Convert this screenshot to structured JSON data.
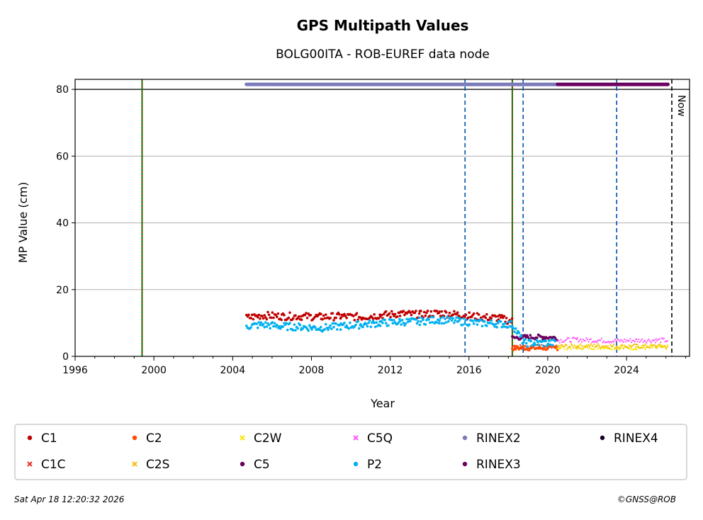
{
  "chart_data": {
    "type": "scatter",
    "title": "GPS Multipath Values",
    "subtitle": "BOLG00ITA - ROB-EUREF data node",
    "xlabel": "Year",
    "ylabel": "MP Value (cm)",
    "xlim": [
      1996,
      2027.2
    ],
    "ylim": [
      0,
      83
    ],
    "grid": "horizontal",
    "x_ticks": [
      "1996",
      "2000",
      "2004",
      "2008",
      "2012",
      "2016",
      "2020",
      "2024"
    ],
    "x_tick_values": [
      1996,
      2000,
      2004,
      2008,
      2012,
      2016,
      2020,
      2024
    ],
    "y_ticks": [
      "0",
      "20",
      "40",
      "60",
      "80"
    ],
    "y_tick_values": [
      0,
      20,
      40,
      60,
      80
    ],
    "now_label": "Now",
    "now_year": 2026.3,
    "vlines_green_red": [
      1999.4,
      2018.2
    ],
    "vlines_blue_dashed": [
      2015.8,
      2018.75,
      2023.5
    ],
    "rinex_bars": [
      {
        "name": "RINEX2",
        "color": "#7b7bbb",
        "y": 81.5,
        "start": 2004.7,
        "end": 2020.5
      },
      {
        "name": "RINEX3",
        "color": "#6a005f",
        "y": 81.5,
        "start": 2020.5,
        "end": 2026.1
      }
    ],
    "series": [
      {
        "name": "C1",
        "color": "#bf0000",
        "marker": "dot",
        "points": [
          [
            2004.7,
            11.5
          ],
          [
            2005.5,
            12.3
          ],
          [
            2006.5,
            12.0
          ],
          [
            2007.5,
            12.0
          ],
          [
            2008.5,
            11.8
          ],
          [
            2009.5,
            12.0
          ],
          [
            2010.5,
            11.8
          ],
          [
            2011.5,
            12.3
          ],
          [
            2012.5,
            12.8
          ],
          [
            2013.5,
            12.5
          ],
          [
            2014.5,
            13.0
          ],
          [
            2015.5,
            12.5
          ],
          [
            2016.5,
            11.8
          ],
          [
            2017.5,
            11.5
          ],
          [
            2018.2,
            10.5
          ]
        ]
      },
      {
        "name": "C1C",
        "color": "#e83020",
        "marker": "x",
        "points": [
          [
            2018.2,
            3.0
          ],
          [
            2019.0,
            2.8
          ],
          [
            2019.8,
            2.8
          ],
          [
            2020.5,
            2.9
          ]
        ]
      },
      {
        "name": "C2",
        "color": "#ff4a00",
        "marker": "dot",
        "points": [
          [
            2018.2,
            2.5
          ],
          [
            2019.0,
            2.5
          ],
          [
            2019.8,
            2.5
          ],
          [
            2020.5,
            2.6
          ]
        ]
      },
      {
        "name": "C2S",
        "color": "#f0c000",
        "marker": "x",
        "points": [
          [
            2020.5,
            3.0
          ],
          [
            2021.5,
            3.0
          ],
          [
            2022.5,
            3.2
          ],
          [
            2023.5,
            3.0
          ],
          [
            2024.5,
            3.0
          ],
          [
            2025.5,
            3.0
          ],
          [
            2026.1,
            3.0
          ]
        ]
      },
      {
        "name": "C2W",
        "color": "#ffe600",
        "marker": "x",
        "points": [
          [
            2020.5,
            2.6
          ],
          [
            2021.5,
            2.7
          ],
          [
            2022.5,
            2.8
          ],
          [
            2023.5,
            2.7
          ],
          [
            2024.5,
            2.6
          ],
          [
            2025.5,
            2.7
          ],
          [
            2026.1,
            2.7
          ]
        ]
      },
      {
        "name": "C5",
        "color": "#6a005f",
        "marker": "dot",
        "points": [
          [
            2018.2,
            5.5
          ],
          [
            2019.0,
            5.8
          ],
          [
            2019.8,
            5.8
          ],
          [
            2020.5,
            5.5
          ]
        ]
      },
      {
        "name": "C5Q",
        "color": "#ff55ff",
        "marker": "x",
        "points": [
          [
            2020.5,
            4.8
          ],
          [
            2021.5,
            5.0
          ],
          [
            2022.5,
            4.8
          ],
          [
            2023.5,
            4.6
          ],
          [
            2024.5,
            4.8
          ],
          [
            2025.5,
            4.8
          ],
          [
            2026.1,
            4.8
          ]
        ]
      },
      {
        "name": "P2",
        "color": "#00b0f0",
        "marker": "dot",
        "points": [
          [
            2004.7,
            9.0
          ],
          [
            2005.5,
            9.5
          ],
          [
            2006.5,
            9.0
          ],
          [
            2007.5,
            8.8
          ],
          [
            2008.5,
            8.5
          ],
          [
            2009.5,
            9.0
          ],
          [
            2010.5,
            9.5
          ],
          [
            2011.5,
            10.0
          ],
          [
            2012.5,
            10.3
          ],
          [
            2013.5,
            10.5
          ],
          [
            2014.5,
            11.0
          ],
          [
            2015.5,
            10.5
          ],
          [
            2016.5,
            10.0
          ],
          [
            2017.5,
            9.8
          ],
          [
            2018.2,
            9.5
          ],
          [
            2018.8,
            4.0
          ],
          [
            2019.5,
            4.0
          ],
          [
            2020.4,
            4.0
          ]
        ]
      },
      {
        "name": "RINEX2",
        "color": "#7b7bbb",
        "marker": "dot",
        "points": []
      },
      {
        "name": "RINEX3",
        "color": "#6a005f",
        "marker": "dot",
        "points": []
      },
      {
        "name": "RINEX4",
        "color": "#1a0028",
        "marker": "dot",
        "points": []
      }
    ],
    "legend": {
      "placement": "bottom",
      "columns": [
        [
          "C1",
          "C1C"
        ],
        [
          "C2",
          "C2S"
        ],
        [
          "C2W",
          "C5"
        ],
        [
          "C5Q",
          "P2"
        ],
        [
          "RINEX2",
          "RINEX3"
        ],
        [
          "RINEX4"
        ]
      ]
    }
  },
  "footer": {
    "timestamp": "Sat Apr 18 12:20:32 2026",
    "credit": "©GNSS@ROB"
  }
}
